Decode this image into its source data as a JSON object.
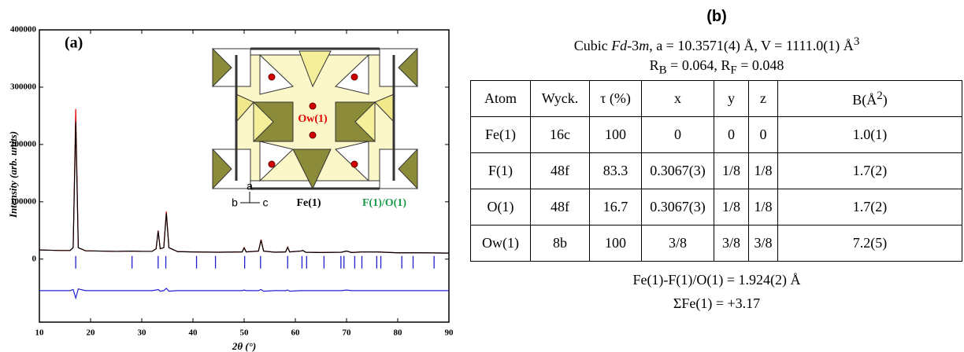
{
  "chart_data": {
    "type": "line",
    "panel_label": "(a)",
    "y_label": "Intensity (arb. units)",
    "x_label": "2θ (°)",
    "x": [
      10,
      12,
      14,
      16,
      16.6,
      17.1,
      17.6,
      19,
      22,
      25,
      28,
      30,
      32,
      32.8,
      33.2,
      33.6,
      34.3,
      34.8,
      35.3,
      37,
      40,
      45,
      49.6,
      50,
      50.4,
      52.8,
      53.3,
      53.8,
      56,
      58.1,
      58.5,
      58.9,
      61,
      61.5,
      62,
      65,
      69,
      70,
      71,
      73,
      76,
      80,
      85,
      90
    ],
    "series": [
      {
        "color": "#e00000",
        "values": [
          16000,
          15500,
          15000,
          15000,
          20000,
          262000,
          20000,
          14500,
          14000,
          13500,
          14000,
          13500,
          13500,
          18000,
          50000,
          18000,
          20000,
          83000,
          20000,
          13000,
          12500,
          12000,
          12500,
          20000,
          12500,
          14000,
          34000,
          14000,
          12000,
          12500,
          21000,
          12500,
          14000,
          15000,
          12000,
          11500,
          12000,
          14000,
          11500,
          12500,
          12500,
          11000,
          11000,
          10500
        ]
      },
      {
        "color": "#000000",
        "values": [
          16000,
          15500,
          15000,
          15000,
          20000,
          240000,
          20000,
          14500,
          14000,
          13500,
          14000,
          13500,
          13500,
          18000,
          49000,
          18000,
          20000,
          80000,
          20000,
          13000,
          12500,
          12000,
          12500,
          19500,
          12500,
          14000,
          33000,
          14000,
          12000,
          12500,
          20500,
          12500,
          14000,
          15000,
          12000,
          11500,
          12000,
          14000,
          11500,
          12500,
          12500,
          11000,
          11000,
          10500
        ]
      },
      {
        "color": "#2020d0",
        "values": [
          -55000,
          -55000,
          -55000,
          -55000,
          -53000,
          -68000,
          -52000,
          -55000,
          -55000,
          -55000,
          -55000,
          -55000,
          -55000,
          -54000,
          -53000,
          -56000,
          -55000,
          -51000,
          -56000,
          -55000,
          -55000,
          -55000,
          -55000,
          -54000,
          -55000,
          -55000,
          -53000,
          -56000,
          -55000,
          -55000,
          -54000,
          -56000,
          -55000,
          -55000,
          -55000,
          -55000,
          -55000,
          -54000,
          -55000,
          -55000,
          -55000,
          -55000,
          -55000,
          -55000
        ]
      }
    ],
    "reflections": [
      17.1,
      28.1,
      33.2,
      34.7,
      40.7,
      44.4,
      50.1,
      53.2,
      58.5,
      61.3,
      62.2,
      65.6,
      68.9,
      69.5,
      71.6,
      73.0,
      75.9,
      76.7,
      80.8,
      83.0,
      87.1
    ],
    "reflection_color": "#2020d0",
    "xlim": [
      10,
      90
    ],
    "xticks": [
      10,
      20,
      30,
      40,
      50,
      60,
      70,
      80,
      90
    ],
    "ylim": [
      -110000,
      400000
    ],
    "yticks": [
      0,
      100000,
      200000,
      300000,
      400000
    ],
    "inset_labels": {
      "water": "Ow(1)",
      "axis_a": "a",
      "axis_b": "b",
      "axis_c": "c",
      "iron": "Fe(1)",
      "anion": "F(1)/O(1)"
    }
  },
  "panel_b": {
    "title": "(b)",
    "line1": [
      "Cubic ",
      "Fd",
      "-3",
      "m",
      ", a = 10.3571(4) Å, V = 1111.0(1) Å",
      "3"
    ],
    "line2": [
      "R",
      "B",
      " = 0.064, R",
      "F",
      " = 0.048"
    ],
    "table": {
      "header": [
        "Atom",
        "Wyck.",
        "τ (%)",
        "x",
        "y",
        "z",
        "B(Å",
        "2",
        ")"
      ],
      "rows": [
        [
          "Fe(1)",
          "16c",
          "100",
          "0",
          "0",
          "0",
          "1.0(1)"
        ],
        [
          "F(1)",
          "48f",
          "83.3",
          "0.3067(3)",
          "1/8",
          "1/8",
          "1.7(2)"
        ],
        [
          "O(1)",
          "48f",
          "16.7",
          "0.3067(3)",
          "1/8",
          "1/8",
          "1.7(2)"
        ],
        [
          "Ow(1)",
          "8b",
          "100",
          "3/8",
          "3/8",
          "3/8",
          "7.2(5)"
        ]
      ]
    },
    "footer": [
      "Fe(1)-F(1)/O(1)  = 1.924(2) Å",
      "ΣFe(1) = +3.17"
    ]
  }
}
